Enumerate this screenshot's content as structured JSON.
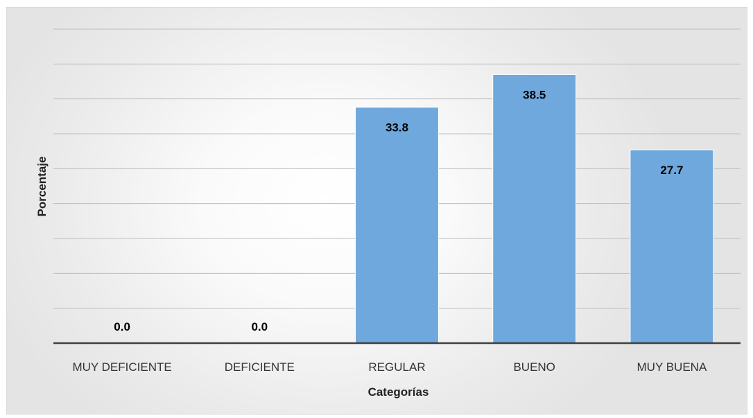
{
  "chart_data": {
    "type": "bar",
    "categories": [
      "MUY DEFICIENTE",
      "DEFICIENTE",
      "REGULAR",
      "BUENO",
      "MUY BUENA"
    ],
    "values": [
      0.0,
      0.0,
      33.8,
      38.5,
      27.7
    ],
    "value_labels": [
      "0.0",
      "0.0",
      "33.8",
      "38.5",
      "27.7"
    ],
    "xlabel": "Categorías",
    "ylabel": "Porcentaje",
    "ylim": [
      0,
      45
    ],
    "ytick_step": 5,
    "y_tick_labels_shown": false,
    "grid": true,
    "bar_color": "#6fa8dc",
    "data_label_position": "inside-top"
  }
}
